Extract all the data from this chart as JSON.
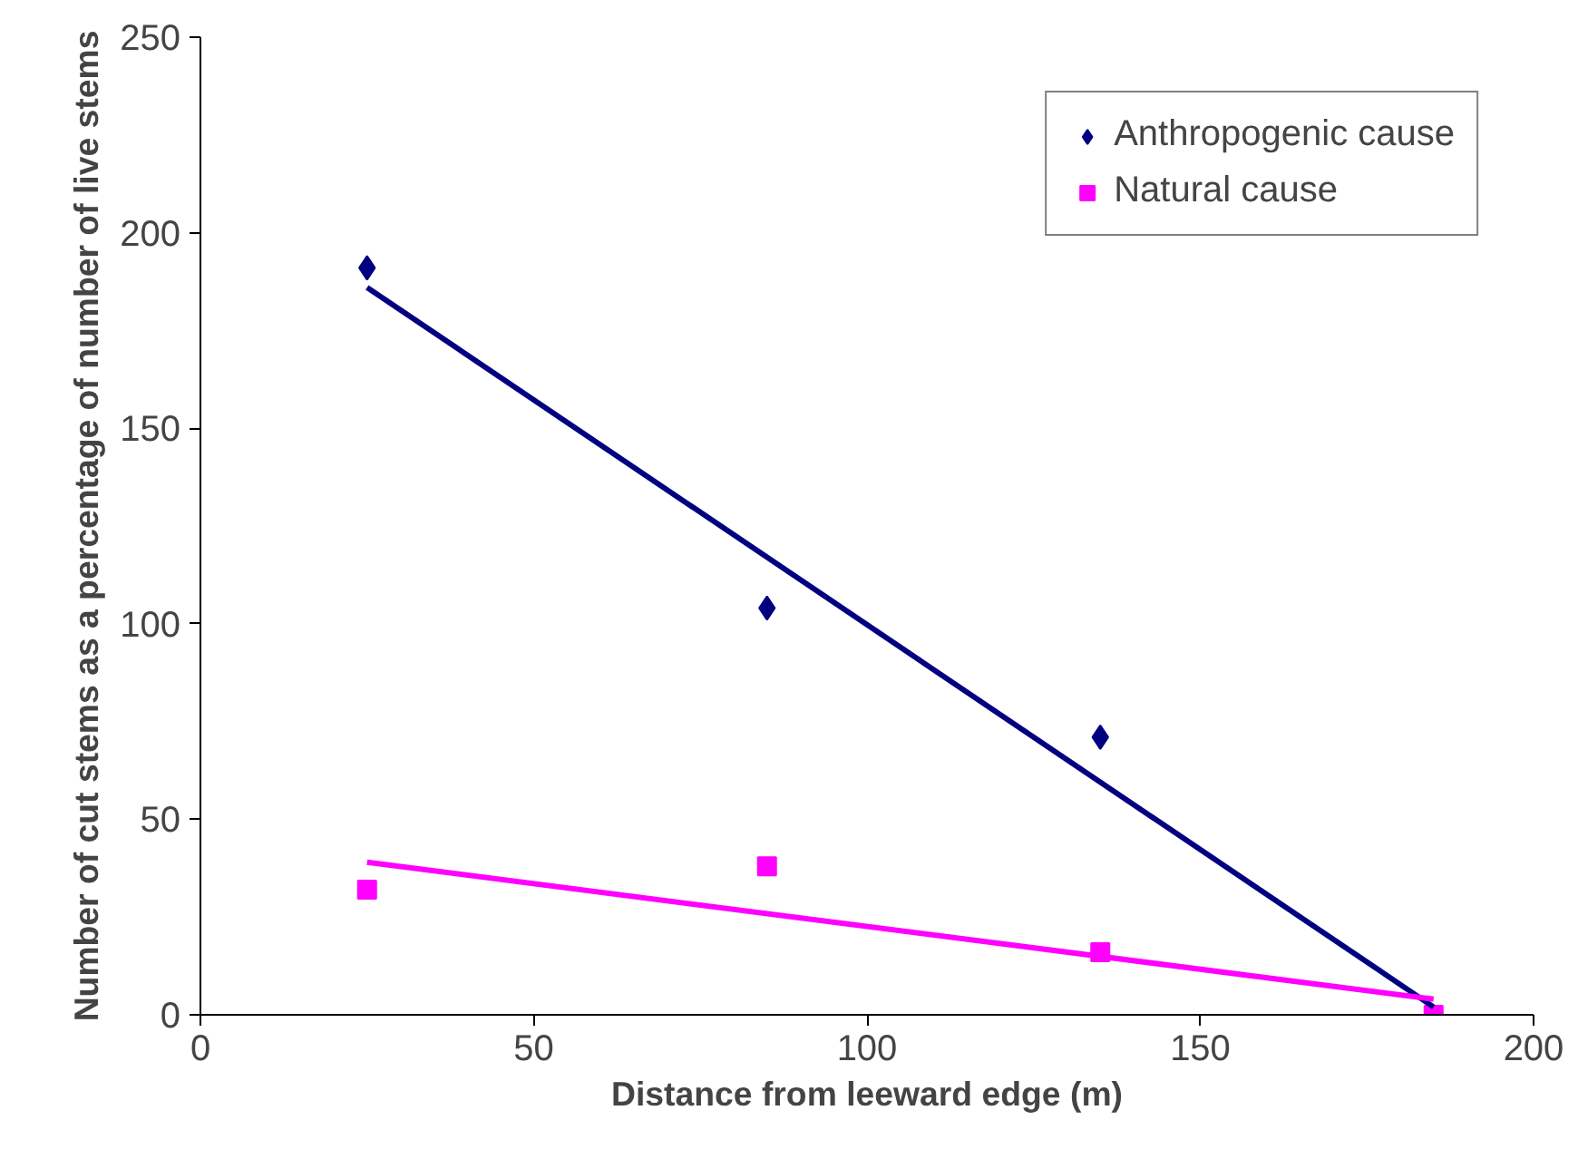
{
  "chart_data": {
    "type": "scatter",
    "xlabel": "Distance from leeward edge (m)",
    "ylabel": "Number of cut stems as a percentage of number of live stems",
    "xlim": [
      0,
      200
    ],
    "ylim": [
      0,
      250
    ],
    "xticks": [
      0,
      50,
      100,
      150,
      200
    ],
    "yticks": [
      0,
      50,
      100,
      150,
      200,
      250
    ],
    "grid": false,
    "legend": "top right",
    "series": [
      {
        "name": "Anthropogenic cause",
        "marker": "diamond",
        "color": "#000080",
        "x": [
          25,
          85,
          135
        ],
        "values": [
          191,
          104,
          71
        ]
      },
      {
        "name": "Natural cause",
        "marker": "square",
        "color": "#ff00ff",
        "x": [
          25,
          85,
          135,
          185
        ],
        "values": [
          32,
          38,
          16,
          0
        ]
      },
      {
        "type": "line",
        "color": "#000080",
        "x": [
          25,
          185
        ],
        "values": [
          186,
          2
        ]
      },
      {
        "type": "line",
        "color": "#ff00ff",
        "x": [
          25,
          185
        ],
        "values": [
          39,
          4
        ]
      }
    ]
  }
}
